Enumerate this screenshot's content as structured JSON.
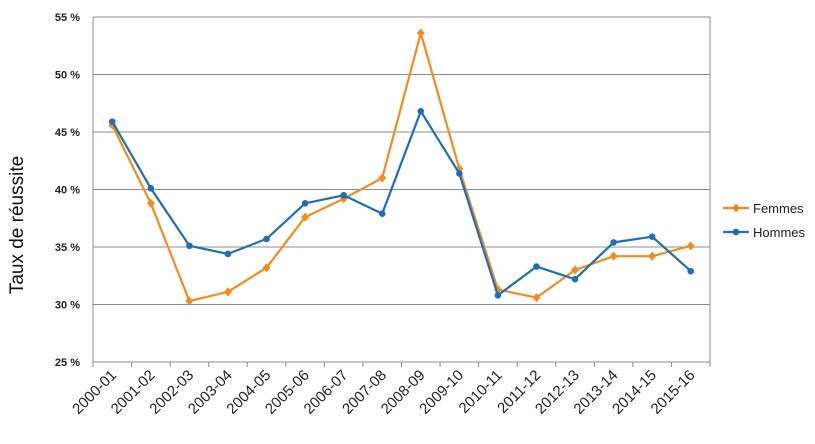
{
  "chart_data": {
    "type": "line",
    "title": "",
    "xlabel": "",
    "ylabel": "Taux de réussite",
    "categories": [
      "2000-01",
      "2001-02",
      "2002-03",
      "2003-04",
      "2004-05",
      "2005-06",
      "2006-07",
      "2007-08",
      "2008-09",
      "2009-10",
      "2010-11",
      "2011-12",
      "2012-13",
      "2013-14",
      "2014-15",
      "2015-16"
    ],
    "ylim": [
      25,
      55
    ],
    "yticks": [
      25,
      30,
      35,
      40,
      45,
      50,
      55
    ],
    "ytick_labels": [
      "25 %",
      "30 %",
      "35 %",
      "40 %",
      "45 %",
      "50 %",
      "55 %"
    ],
    "grid": true,
    "legend_position": "right",
    "series": [
      {
        "name": "Femmes",
        "color": "#F28C1F",
        "marker": "diamond",
        "values": [
          45.6,
          38.8,
          30.3,
          31.1,
          33.2,
          37.6,
          39.2,
          41.0,
          53.6,
          41.8,
          31.3,
          30.6,
          33.0,
          34.2,
          34.2,
          35.1
        ]
      },
      {
        "name": "Hommes",
        "color": "#1F6FB8",
        "marker": "circle",
        "values": [
          45.9,
          40.1,
          35.1,
          34.4,
          35.7,
          38.8,
          39.5,
          37.9,
          46.8,
          41.4,
          30.8,
          33.3,
          32.2,
          35.4,
          35.9,
          32.9
        ]
      }
    ]
  }
}
